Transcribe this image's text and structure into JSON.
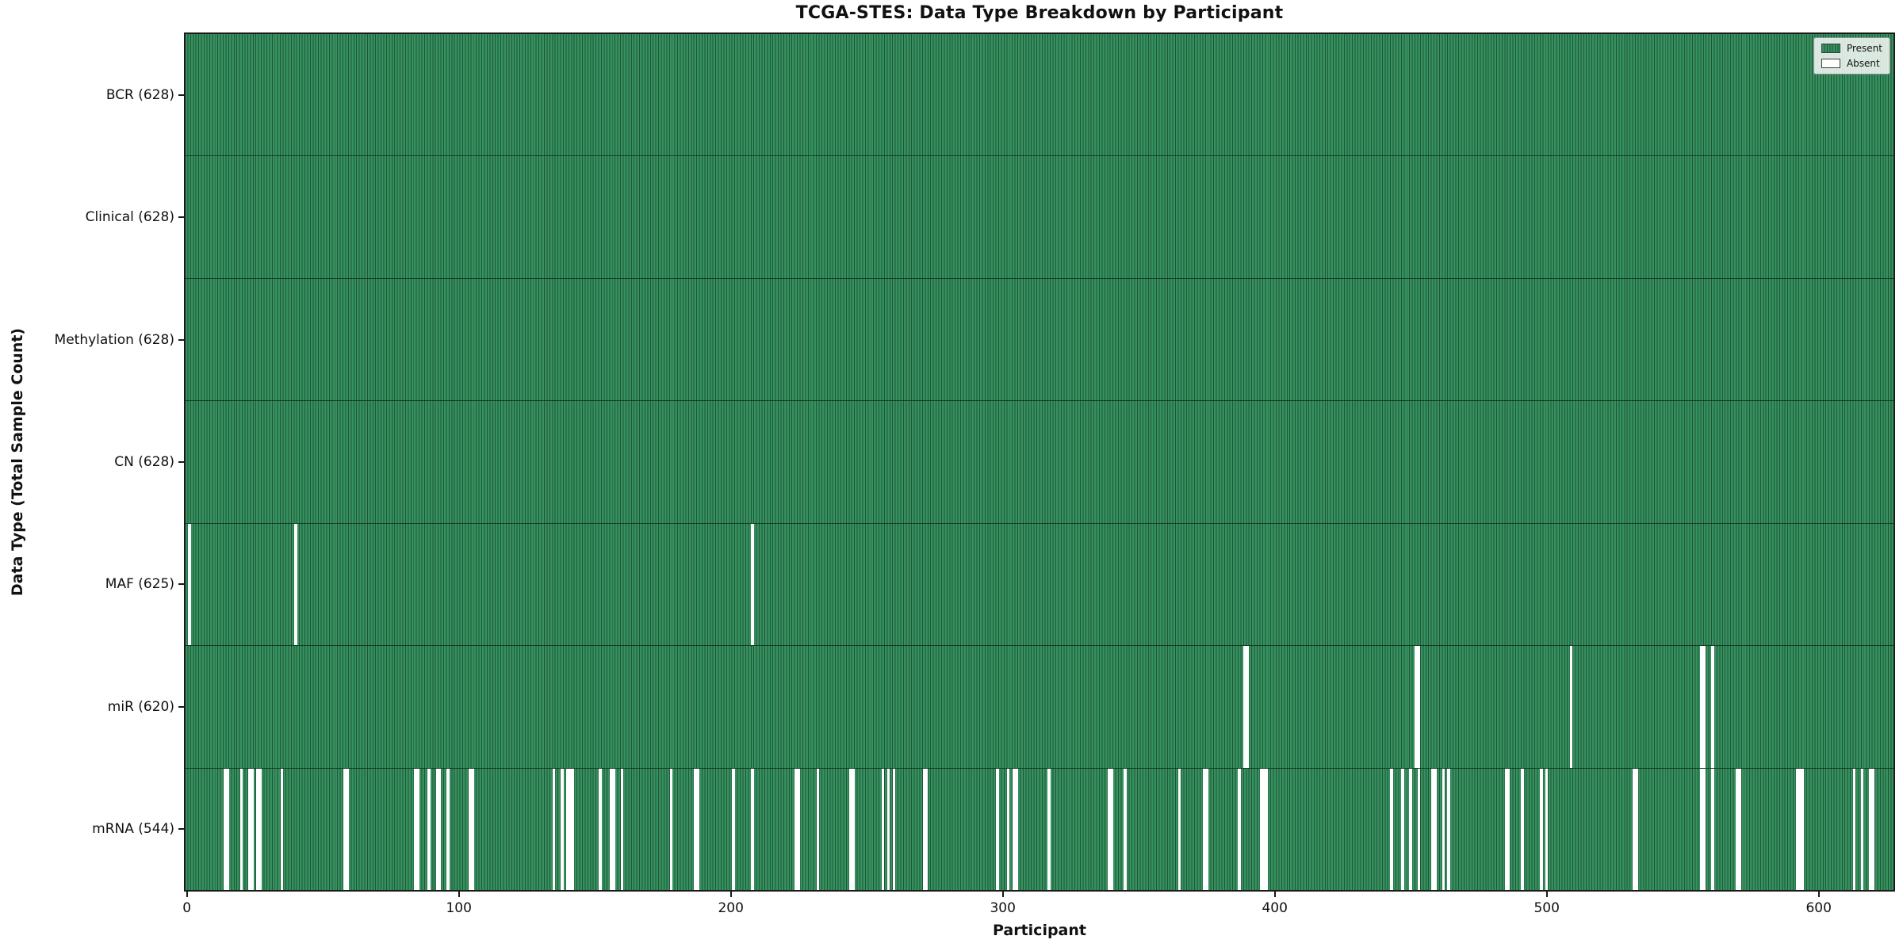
{
  "title": "TCGA-STES: Data Type Breakdown by Participant",
  "xlabel": "Participant",
  "ylabel": "Data Type (Total Sample Count)",
  "legend": {
    "present_label": "Present",
    "absent_label": "Absent"
  },
  "colors": {
    "present": "#2e8b57",
    "present_light": "#37905f",
    "present_dark": "#1d5737",
    "absent": "#ffffff",
    "spine": "#1a1a1a"
  },
  "chart_data": {
    "type": "heatmap",
    "title": "TCGA-STES: Data Type Breakdown by Participant",
    "xlabel": "Participant",
    "ylabel": "Data Type (Total Sample Count)",
    "legend_position": "upper right",
    "legend_entries": [
      "Present",
      "Absent"
    ],
    "n_participants": 628,
    "x_ticks": [
      0,
      100,
      200,
      300,
      400,
      500,
      600
    ],
    "x_range": [
      0,
      628
    ],
    "rows": [
      {
        "label": "BCR (628)",
        "data_type": "BCR",
        "present_count": 628,
        "absent_runs": []
      },
      {
        "label": "Clinical (628)",
        "data_type": "Clinical",
        "present_count": 628,
        "absent_runs": []
      },
      {
        "label": "Methylation (628)",
        "data_type": "Methylation",
        "present_count": 628,
        "absent_runs": []
      },
      {
        "label": "CN (628)",
        "data_type": "CN",
        "present_count": 628,
        "absent_runs": []
      },
      {
        "label": "MAF (625)",
        "data_type": "MAF",
        "present_count": 625,
        "absent_runs": [
          [
            1,
            1
          ],
          [
            40,
            1
          ],
          [
            208,
            1
          ]
        ]
      },
      {
        "label": "miR (620)",
        "data_type": "miR",
        "present_count": 620,
        "absent_runs": [
          [
            389,
            2
          ],
          [
            452,
            2
          ],
          [
            509,
            1
          ],
          [
            557,
            2
          ],
          [
            561,
            1
          ]
        ]
      },
      {
        "label": "mRNA (544)",
        "data_type": "mRNA",
        "present_count": 544,
        "absent_runs": [
          [
            14,
            2
          ],
          [
            20,
            1
          ],
          [
            23,
            2
          ],
          [
            26,
            2
          ],
          [
            35,
            1
          ],
          [
            58,
            2
          ],
          [
            84,
            2
          ],
          [
            89,
            1
          ],
          [
            92,
            2
          ],
          [
            96,
            1
          ],
          [
            104,
            2
          ],
          [
            135,
            1
          ],
          [
            138,
            1
          ],
          [
            140,
            2
          ],
          [
            142,
            1
          ],
          [
            152,
            1
          ],
          [
            156,
            2
          ],
          [
            160,
            1
          ],
          [
            178,
            1
          ],
          [
            187,
            2
          ],
          [
            201,
            1
          ],
          [
            208,
            1
          ],
          [
            224,
            2
          ],
          [
            232,
            1
          ],
          [
            244,
            2
          ],
          [
            256,
            1
          ],
          [
            258,
            1
          ],
          [
            260,
            1
          ],
          [
            271,
            2
          ],
          [
            298,
            1
          ],
          [
            302,
            1
          ],
          [
            304,
            2
          ],
          [
            317,
            1
          ],
          [
            339,
            2
          ],
          [
            345,
            1
          ],
          [
            365,
            1
          ],
          [
            374,
            2
          ],
          [
            387,
            1
          ],
          [
            395,
            2
          ],
          [
            397,
            1
          ],
          [
            443,
            1
          ],
          [
            447,
            1
          ],
          [
            450,
            1
          ],
          [
            453,
            1
          ],
          [
            458,
            2
          ],
          [
            462,
            1
          ],
          [
            464,
            1
          ],
          [
            485,
            2
          ],
          [
            491,
            1
          ],
          [
            498,
            1
          ],
          [
            500,
            1
          ],
          [
            532,
            2
          ],
          [
            557,
            2
          ],
          [
            561,
            1
          ],
          [
            570,
            2
          ],
          [
            592,
            2
          ],
          [
            594,
            1
          ],
          [
            613,
            1
          ],
          [
            616,
            1
          ],
          [
            619,
            2
          ]
        ]
      }
    ]
  }
}
